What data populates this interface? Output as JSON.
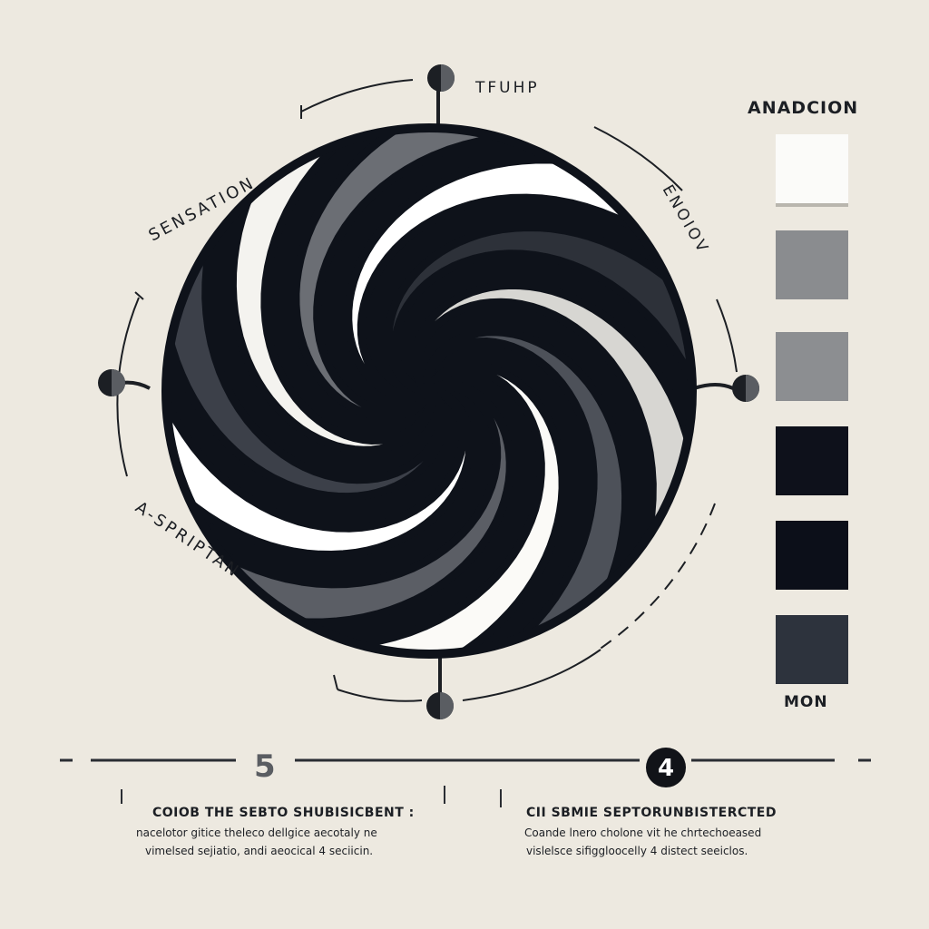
{
  "diagram": {
    "labels": {
      "top": "TFUHP",
      "top_left": "SENSATION",
      "top_right": "ENOIOV",
      "bottom_left": "A-SPRIPTAN"
    }
  },
  "legend": {
    "title": "ANADCION",
    "footer": "MON",
    "swatches": [
      "#fbfbf9",
      "#8a8c8f",
      "#8c8e91",
      "#0e111b",
      "#0c0f19",
      "#2d333d"
    ]
  },
  "steps": {
    "left_number": "5",
    "right_number": "4"
  },
  "captions": {
    "left": {
      "title": "COIOB THE SEBTO SHUBISICBENT :",
      "line1": "nacelotor gitice theleco dellgice aecotaly ne",
      "line2": "vimelsed sejiatio, andi aeocical 4 seciicin."
    },
    "right": {
      "title": "CII SBMIE SEPTORUNBISTERCTED",
      "line1": "Coande lnero cholone vit he chrtechoeased",
      "line2": "vislelsce sifiggloocelly 4 distect seeiclos."
    }
  }
}
